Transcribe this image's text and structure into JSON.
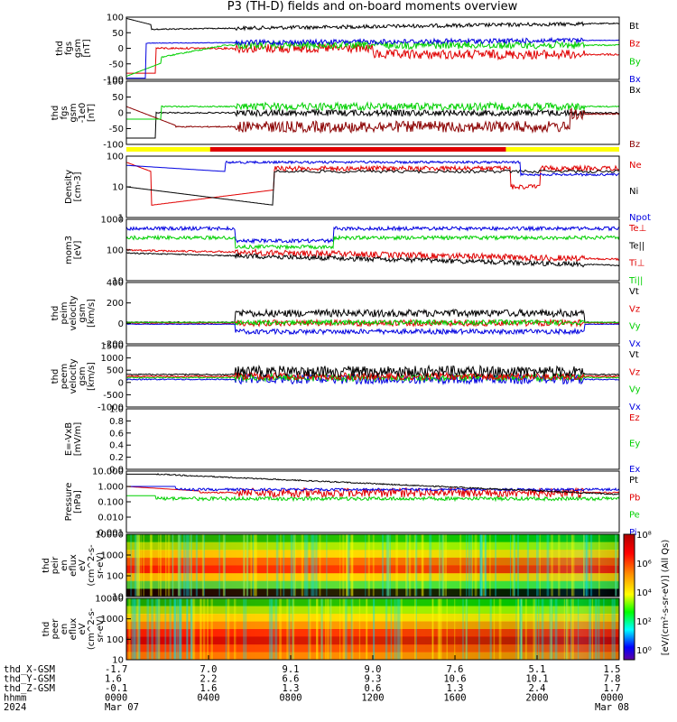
{
  "title": "P3 (TH-D) fields and on-board moments overview",
  "colors": {
    "black": "#000000",
    "red": "#e00000",
    "green": "#00d000",
    "blue": "#0000e0",
    "darkred": "#8b0000",
    "yellow": "#ffff00",
    "barred": "#e00000"
  },
  "x_axis": {
    "rows": [
      {
        "label": "thd_X-GSM",
        "values": [
          "-1.7",
          "7.0",
          "9.1",
          "9.0",
          "7.6",
          "5.1",
          "1.5"
        ]
      },
      {
        "label": "thd_Y-GSM",
        "values": [
          "1.6",
          "2.2",
          "6.6",
          "9.3",
          "10.6",
          "10.1",
          "7.8"
        ]
      },
      {
        "label": "thd_Z-GSM",
        "values": [
          "-0.1",
          "1.6",
          "1.3",
          "0.6",
          "1.3",
          "2.4",
          "1.7"
        ]
      },
      {
        "label": "hhmm",
        "values": [
          "0000",
          "0400",
          "0800",
          "1200",
          "1600",
          "2000",
          "0000"
        ]
      },
      {
        "label": "2024",
        "values": [
          "Mar 07",
          "",
          "",
          "",
          "",
          "",
          "Mar 08"
        ]
      }
    ]
  },
  "chart_data": [
    {
      "type": "line",
      "ylabel_lines": [
        "thd",
        "fgs",
        "gsm",
        "[nT]"
      ],
      "yticks": [
        "100",
        "50",
        "0",
        "-50",
        "-100"
      ],
      "ylim": [
        -100,
        100
      ],
      "legend": [
        {
          "name": "Bt",
          "color": "black"
        },
        {
          "name": "Bz",
          "color": "red"
        },
        {
          "name": "By",
          "color": "green"
        },
        {
          "name": "Bx",
          "color": "blue"
        }
      ]
    },
    {
      "type": "line",
      "ylabel_lines": [
        "thd",
        "fgs",
        "gsm",
        "-1e0",
        "[nT]"
      ],
      "yticks": [
        "100",
        "50",
        "0",
        "-50",
        "-100"
      ],
      "ylim": [
        -120,
        100
      ],
      "legend": [
        {
          "name": "Bx",
          "color": "black"
        },
        {
          "name": "Bz",
          "color": "darkred"
        }
      ]
    },
    {
      "type": "line",
      "scale": "log",
      "ylabel_lines": [
        "Density",
        "[cm-3]"
      ],
      "yticks": [
        "100",
        "10",
        "1"
      ],
      "legend": [
        {
          "name": "Ne",
          "color": "red"
        },
        {
          "name": "Ni",
          "color": "black"
        },
        {
          "name": "Npot",
          "color": "blue"
        }
      ]
    },
    {
      "type": "line",
      "scale": "log",
      "ylabel_lines": [
        "mom3",
        "[eV]"
      ],
      "yticks": [
        "1000",
        "100",
        "10"
      ],
      "legend": [
        {
          "name": "Te⊥",
          "color": "red"
        },
        {
          "name": "Te||",
          "color": "black"
        },
        {
          "name": "Ti⊥",
          "color": "red"
        },
        {
          "name": "Ti||",
          "color": "green"
        }
      ]
    },
    {
      "type": "line",
      "ylabel_lines": [
        "thd",
        "peim",
        "velocity",
        "gsm",
        "[km/s]"
      ],
      "yticks": [
        "400",
        "200",
        "0",
        "-200"
      ],
      "ylim": [
        -250,
        450
      ],
      "legend": [
        {
          "name": "Vt",
          "color": "black"
        },
        {
          "name": "Vz",
          "color": "red"
        },
        {
          "name": "Vy",
          "color": "green"
        },
        {
          "name": "Vx",
          "color": "blue"
        }
      ]
    },
    {
      "type": "line",
      "ylabel_lines": [
        "thd",
        "peem",
        "velocity",
        "gsm",
        "[km/s]"
      ],
      "yticks": [
        "1500",
        "1000",
        "500",
        "0",
        "-500",
        "-1000"
      ],
      "ylim": [
        -1500,
        1700
      ],
      "legend": [
        {
          "name": "Vt",
          "color": "black"
        },
        {
          "name": "Vz",
          "color": "red"
        },
        {
          "name": "Vy",
          "color": "green"
        },
        {
          "name": "Vx",
          "color": "blue"
        }
      ]
    },
    {
      "type": "line",
      "ylabel_lines": [
        "E=-VxB",
        "[mV/m]"
      ],
      "yticks": [
        "1.0",
        "0.8",
        "0.6",
        "0.4",
        "0.2",
        "0.0"
      ],
      "ylim": [
        0,
        1
      ],
      "legend": [
        {
          "name": "Ez",
          "color": "red"
        },
        {
          "name": "Ey",
          "color": "green"
        },
        {
          "name": "Ex",
          "color": "blue"
        }
      ]
    },
    {
      "type": "line",
      "scale": "log",
      "ylabel_lines": [
        "Pressure",
        "[nPa]"
      ],
      "yticks": [
        "10.000",
        "1.000",
        "0.100",
        "0.010",
        "0.001"
      ],
      "legend": [
        {
          "name": "Pt",
          "color": "black"
        },
        {
          "name": "Pb",
          "color": "red"
        },
        {
          "name": "Pe",
          "color": "green"
        },
        {
          "name": "Pi",
          "color": "blue"
        }
      ]
    },
    {
      "type": "heatmap",
      "ylabel_lines": [
        "thd",
        "peir",
        "en",
        "eflux",
        "eV",
        "(cm^2-s-",
        "sr-eV)"
      ],
      "yticks": [
        "10000",
        "1000",
        "100",
        "10"
      ]
    },
    {
      "type": "heatmap",
      "ylabel_lines": [
        "thd",
        "peer",
        "en",
        "eflux",
        "eV",
        "(cm^2-s-",
        "sr-eV)"
      ],
      "yticks": [
        "10000",
        "1000",
        "100",
        "10"
      ]
    }
  ],
  "colorbar": {
    "ticks": [
      "10⁸",
      "10⁶",
      "10⁴",
      "10²",
      "10⁰"
    ],
    "label": "[eV/(cm²-s-sr-eV)] (All Qs)"
  }
}
